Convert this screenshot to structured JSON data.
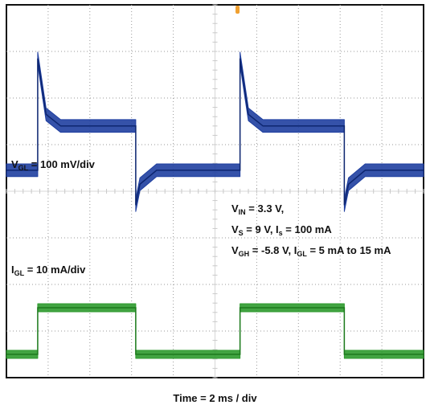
{
  "chart_data": {
    "type": "line",
    "title": "",
    "xlabel": "Time = 2 ms / div",
    "ylabel": "",
    "grid": true,
    "divisions": {
      "x": 10,
      "y": 8
    },
    "xlim": [
      0,
      20
    ],
    "x_unit": "ms",
    "series": [
      {
        "name": "VGL",
        "scale_label": {
          "main": "V",
          "sub": "GL",
          "rest": " = 100 mV/div"
        },
        "color": "#1f3fa0",
        "unit": "mV",
        "ylim": [
          0,
          800
        ],
        "x": [
          0,
          1.5,
          1.5,
          1.9,
          2.6,
          6.2,
          6.2,
          6.4,
          7.2,
          11.2,
          11.2,
          11.6,
          12.3,
          16.2,
          16.2,
          16.4,
          17.2,
          20
        ],
        "y": [
          445,
          445,
          685,
          565,
          540,
          540,
          370,
          415,
          445,
          445,
          685,
          565,
          540,
          540,
          370,
          415,
          445,
          445
        ],
        "noise_band_mV": 22
      },
      {
        "name": "IGL",
        "scale_label": {
          "main": "I",
          "sub": "GL",
          "rest": " = 10 mA/div"
        },
        "color": "#2e9a2e",
        "unit": "mA",
        "ylim": [
          0,
          80
        ],
        "x": [
          0,
          1.5,
          1.5,
          6.2,
          6.2,
          11.2,
          11.2,
          16.2,
          16.2,
          20
        ],
        "y": [
          5,
          5,
          15,
          15,
          5,
          5,
          15,
          15,
          5,
          5
        ],
        "noise_band_mA": 1.2
      }
    ],
    "annotations": [
      {
        "parts": [
          {
            "t": "V"
          },
          {
            "t": "IN",
            "sub": true
          },
          {
            "t": " = 3.3 V,"
          }
        ]
      },
      {
        "parts": [
          {
            "t": "V"
          },
          {
            "t": "S",
            "sub": true
          },
          {
            "t": " = 9 V, I"
          },
          {
            "t": "s",
            "sub": true
          },
          {
            "t": " = 100 mA"
          }
        ]
      },
      {
        "parts": [
          {
            "t": "V"
          },
          {
            "t": "GH",
            "sub": true
          },
          {
            "t": " = -5.8 V, I"
          },
          {
            "t": "GL",
            "sub": true
          },
          {
            "t": " = 5 mA to 15 mA"
          }
        ]
      }
    ]
  }
}
